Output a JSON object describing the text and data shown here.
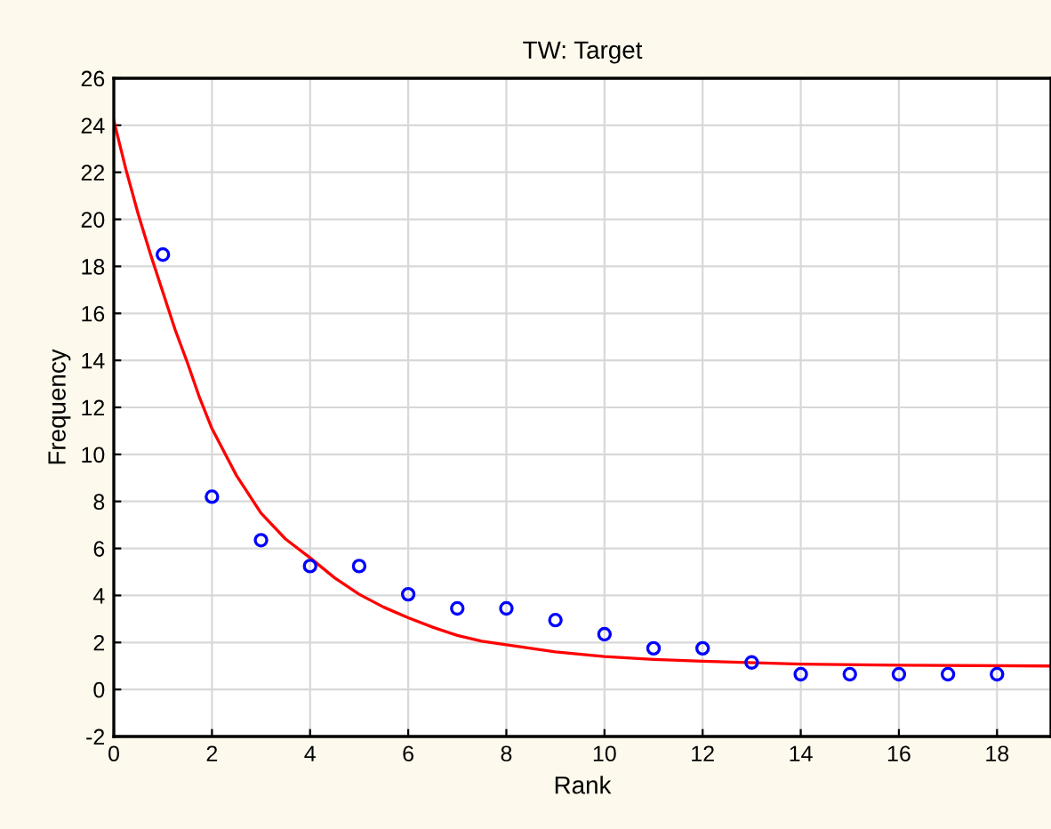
{
  "chart_data": {
    "type": "scatter",
    "title": "TW: Target",
    "xlabel": "Rank",
    "ylabel": "Frequency",
    "xlim": [
      0,
      19.1
    ],
    "xticks": [
      0,
      2,
      4,
      6,
      8,
      10,
      12,
      14,
      16,
      18
    ],
    "ylim": [
      -2,
      26
    ],
    "yticks": [
      -2,
      0,
      2,
      4,
      6,
      8,
      10,
      12,
      14,
      16,
      18,
      20,
      22,
      24,
      26
    ],
    "grid": true,
    "marker": "circle",
    "legend": false,
    "series": [
      {
        "color": "#0000ff",
        "x": [
          1,
          2,
          3,
          4,
          5,
          6,
          7,
          8,
          9,
          10,
          11,
          12,
          13,
          14,
          15,
          16,
          17,
          18
        ],
        "values": [
          18.5,
          8.2,
          6.35,
          5.25,
          5.25,
          4.05,
          3.45,
          3.45,
          2.95,
          2.35,
          1.75,
          1.75,
          1.15,
          0.65,
          0.65,
          0.65,
          0.65,
          0.65
        ]
      },
      {
        "type": "line",
        "color": "#ff0000",
        "line_style": "solid",
        "marker": "none",
        "x": [
          0,
          0.25,
          0.5,
          0.75,
          1,
          1.25,
          1.5,
          1.75,
          2,
          2.5,
          3,
          3.5,
          4,
          4.5,
          5,
          5.5,
          6,
          6.5,
          7,
          7.5,
          8,
          9,
          10,
          11,
          12,
          14,
          16,
          19.1
        ],
        "values": [
          24.2,
          22.1,
          20.2,
          18.5,
          16.9,
          15.3,
          13.9,
          12.4,
          11.1,
          9.1,
          7.5,
          6.4,
          5.6,
          4.75,
          4.05,
          3.5,
          3.05,
          2.65,
          2.3,
          2.05,
          1.9,
          1.6,
          1.4,
          1.28,
          1.2,
          1.08,
          1.03,
          1.0
        ]
      }
    ]
  }
}
